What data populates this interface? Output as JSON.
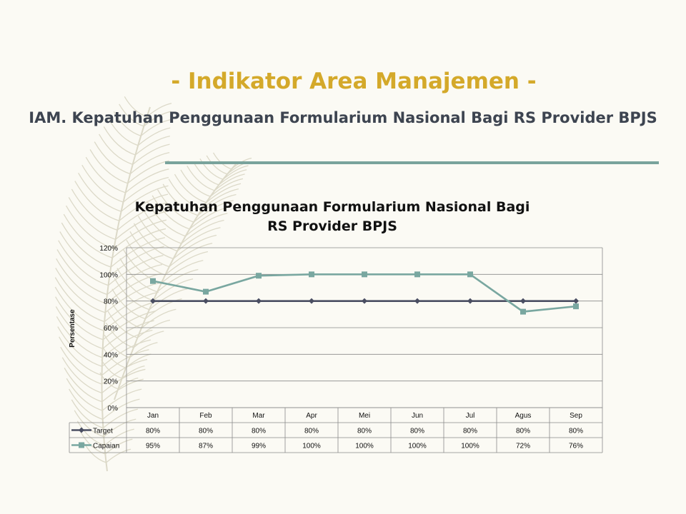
{
  "slide": {
    "title": "- Indikator Area Manajemen -",
    "subtitle": "IAM. Kepatuhan Penggunaan Formularium Nasional Bagi RS Provider BPJS",
    "accent_color": "#d4a92a",
    "rule_color": "#79a39c"
  },
  "chart_data": {
    "type": "line",
    "title": "Kepatuhan Penggunaan Formularium Nasional Bagi RS Provider BPJS",
    "ylabel": "Persentase",
    "xlabel": "",
    "ylim": [
      0,
      120
    ],
    "yticks": [
      "0%",
      "20%",
      "40%",
      "60%",
      "80%",
      "100%",
      "120%"
    ],
    "grid": true,
    "legend": "data-table-left",
    "categories": [
      "Jan",
      "Feb",
      "Mar",
      "Apr",
      "Mei",
      "Jun",
      "Jul",
      "Agus",
      "Sep"
    ],
    "series": [
      {
        "name": "Target",
        "color": "#4a4e62",
        "marker": "diamond",
        "values": [
          80,
          80,
          80,
          80,
          80,
          80,
          80,
          80,
          80
        ],
        "labels": [
          "80%",
          "80%",
          "80%",
          "80%",
          "80%",
          "80%",
          "80%",
          "80%",
          "80%"
        ]
      },
      {
        "name": "Capaian",
        "color": "#79a7a0",
        "marker": "square",
        "values": [
          95,
          87,
          99,
          100,
          100,
          100,
          100,
          72,
          76
        ],
        "labels": [
          "95%",
          "87%",
          "99%",
          "100%",
          "100%",
          "100%",
          "100%",
          "72%",
          "76%"
        ]
      }
    ]
  }
}
